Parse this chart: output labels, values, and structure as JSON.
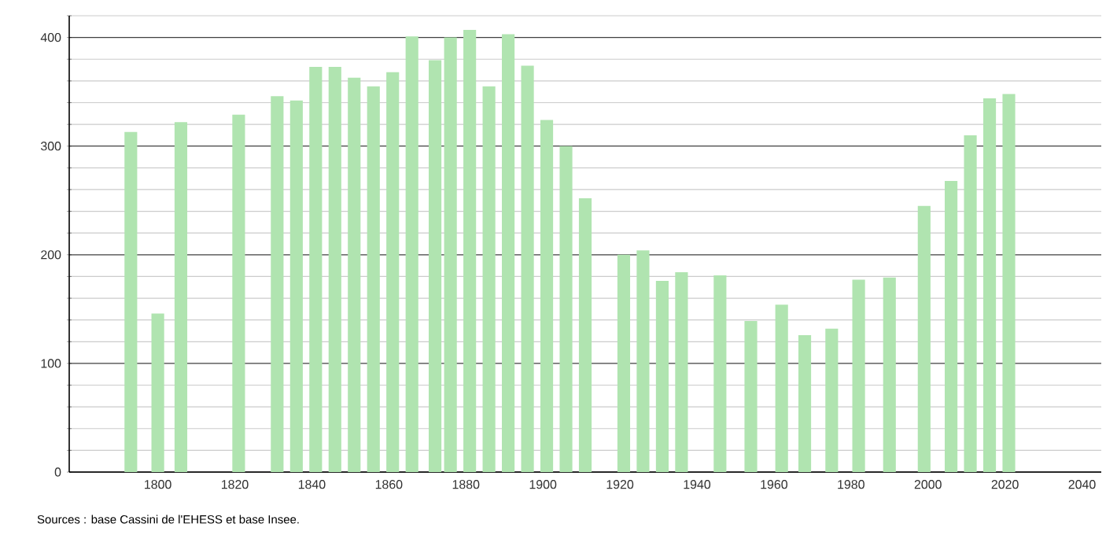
{
  "chart_data": {
    "type": "bar",
    "x": [
      1793,
      1800,
      1806,
      1821,
      1831,
      1836,
      1841,
      1846,
      1851,
      1856,
      1861,
      1866,
      1872,
      1876,
      1881,
      1886,
      1891,
      1896,
      1901,
      1906,
      1911,
      1921,
      1926,
      1931,
      1936,
      1946,
      1954,
      1962,
      1968,
      1975,
      1982,
      1990,
      1999,
      2006,
      2011,
      2016,
      2021
    ],
    "values": [
      313,
      146,
      322,
      329,
      346,
      342,
      373,
      373,
      363,
      355,
      368,
      401,
      379,
      400,
      407,
      355,
      403,
      374,
      324,
      300,
      252,
      200,
      204,
      176,
      184,
      181,
      139,
      154,
      126,
      132,
      177,
      179,
      245,
      268,
      310,
      344,
      348
    ],
    "color": "#b0e4b0",
    "xlim": [
      1777,
      2045
    ],
    "xticks": [
      1800,
      1820,
      1840,
      1860,
      1880,
      1900,
      1920,
      1940,
      1960,
      1980,
      2000,
      2020,
      2040
    ],
    "ylim": [
      0,
      420
    ],
    "yticks": [
      0,
      {
        "value": 20,
        "label": null
      },
      {
        "value": 40,
        "label": null
      },
      {
        "value": 60,
        "label": null
      },
      {
        "value": 80,
        "label": null
      },
      100,
      {
        "value": 120,
        "label": null
      },
      {
        "value": 140,
        "label": null
      },
      {
        "value": 160,
        "label": null
      },
      {
        "value": 180,
        "label": null
      },
      200,
      {
        "value": 220,
        "label": null
      },
      {
        "value": 240,
        "label": null
      },
      {
        "value": 260,
        "label": null
      },
      {
        "value": 280,
        "label": null
      },
      300,
      {
        "value": 320,
        "label": null
      },
      {
        "value": 340,
        "label": null
      },
      {
        "value": 360,
        "label": null
      },
      {
        "value": 380,
        "label": null
      },
      400,
      {
        "value": 420,
        "label": null
      }
    ],
    "grid": "y",
    "annotations": [
      "Sources : base Cassini de l'EHESS et base Insee."
    ]
  }
}
